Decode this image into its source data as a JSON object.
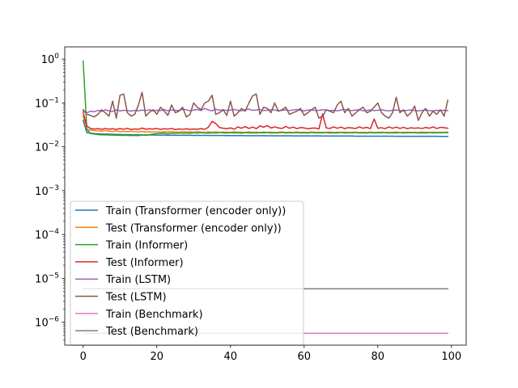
{
  "chart_data": {
    "type": "line",
    "title": "",
    "xlabel": "",
    "ylabel": "",
    "x_scale": "linear",
    "y_scale": "log",
    "xlim": [
      -5,
      104
    ],
    "ylim": [
      3e-07,
      1.9
    ],
    "grid": false,
    "legend_position": "lower-left",
    "x_ticks": [
      0,
      20,
      40,
      60,
      80,
      100
    ],
    "x_tick_labels": [
      "0",
      "20",
      "40",
      "60",
      "80",
      "100"
    ],
    "y_ticks": [
      1e-06,
      1e-05,
      0.0001,
      0.001,
      0.01,
      0.1,
      1
    ],
    "y_tick_mantissa": [
      "10",
      "10",
      "10",
      "10",
      "10",
      "10",
      "10"
    ],
    "y_tick_exponents": [
      "−6",
      "−5",
      "−4",
      "−3",
      "−2",
      "−1",
      "0"
    ],
    "x": [
      0,
      1,
      2,
      3,
      4,
      5,
      6,
      7,
      8,
      9,
      10,
      11,
      12,
      13,
      14,
      15,
      16,
      17,
      18,
      19,
      20,
      21,
      22,
      23,
      24,
      25,
      26,
      27,
      28,
      29,
      30,
      31,
      32,
      33,
      34,
      35,
      36,
      37,
      38,
      39,
      40,
      41,
      42,
      43,
      44,
      45,
      46,
      47,
      48,
      49,
      50,
      51,
      52,
      53,
      54,
      55,
      56,
      57,
      58,
      59,
      60,
      61,
      62,
      63,
      64,
      65,
      66,
      67,
      68,
      69,
      70,
      71,
      72,
      73,
      74,
      75,
      76,
      77,
      78,
      79,
      80,
      81,
      82,
      83,
      84,
      85,
      86,
      87,
      88,
      89,
      90,
      91,
      92,
      93,
      94,
      95,
      96,
      97,
      98,
      99
    ],
    "series": [
      {
        "name": "Train (Transformer (encoder only))",
        "color": "#1f77b4",
        "values": [
          0.04,
          0.021,
          0.0205,
          0.02,
          0.0198,
          0.0196,
          0.0195,
          0.0194,
          0.0193,
          0.0192,
          0.0191,
          0.019,
          0.0189,
          0.0189,
          0.0188,
          0.0188,
          0.0187,
          0.0187,
          0.0186,
          0.0186,
          0.0185,
          0.0185,
          0.0185,
          0.0184,
          0.0184,
          0.0184,
          0.0183,
          0.0183,
          0.0183,
          0.0183,
          0.0182,
          0.0182,
          0.0182,
          0.0182,
          0.0181,
          0.0181,
          0.0181,
          0.0181,
          0.0181,
          0.018,
          0.018,
          0.018,
          0.018,
          0.018,
          0.0179,
          0.0179,
          0.0179,
          0.0179,
          0.0179,
          0.0179,
          0.0178,
          0.0178,
          0.0178,
          0.0178,
          0.0178,
          0.0178,
          0.0178,
          0.0177,
          0.0177,
          0.0177,
          0.0177,
          0.0177,
          0.0177,
          0.0177,
          0.0177,
          0.0176,
          0.0176,
          0.0176,
          0.0176,
          0.0176,
          0.0176,
          0.0176,
          0.0176,
          0.0176,
          0.0175,
          0.0175,
          0.0175,
          0.0175,
          0.0175,
          0.0175,
          0.0175,
          0.0175,
          0.0175,
          0.0175,
          0.0175,
          0.0174,
          0.0174,
          0.0174,
          0.0174,
          0.0174,
          0.0174,
          0.0174,
          0.0174,
          0.0174,
          0.0174,
          0.0174,
          0.0174,
          0.0173,
          0.0173,
          0.0173
        ]
      },
      {
        "name": "Test (Transformer (encoder only))",
        "color": "#ff7f0e",
        "values": [
          0.05,
          0.025,
          0.024,
          0.0235,
          0.0232,
          0.0228,
          0.0235,
          0.0226,
          0.0224,
          0.023,
          0.0222,
          0.0225,
          0.022,
          0.0226,
          0.0221,
          0.0219,
          0.0224,
          0.0218,
          0.0222,
          0.0217,
          0.0221,
          0.0216,
          0.022,
          0.0218,
          0.0223,
          0.0217,
          0.0215,
          0.0221,
          0.0216,
          0.0219,
          0.0215,
          0.0222,
          0.0216,
          0.0214,
          0.0219,
          0.0215,
          0.0221,
          0.0214,
          0.0218,
          0.0216,
          0.0213,
          0.022,
          0.0215,
          0.0217,
          0.0213,
          0.0219,
          0.0214,
          0.0216,
          0.0212,
          0.0218,
          0.0214,
          0.0217,
          0.0213,
          0.0215,
          0.0219,
          0.0213,
          0.0216,
          0.0212,
          0.0218,
          0.0214,
          0.0215,
          0.0213,
          0.0219,
          0.0212,
          0.0216,
          0.0214,
          0.0213,
          0.0218,
          0.0212,
          0.0215,
          0.0213,
          0.0217,
          0.0212,
          0.0214,
          0.0216,
          0.0212,
          0.0215,
          0.0213,
          0.0217,
          0.0212,
          0.0214,
          0.0216,
          0.0212,
          0.0215,
          0.0213,
          0.0218,
          0.0212,
          0.0214,
          0.0216,
          0.0213,
          0.0215,
          0.0212,
          0.0217,
          0.0214,
          0.0213,
          0.0216,
          0.0212,
          0.0215,
          0.0213,
          0.0216
        ]
      },
      {
        "name": "Train (Informer)",
        "color": "#2ca02c",
        "values": [
          0.9,
          0.025,
          0.02,
          0.0195,
          0.019,
          0.0188,
          0.0187,
          0.0186,
          0.0185,
          0.0184,
          0.0183,
          0.0182,
          0.0182,
          0.0181,
          0.0181,
          0.018,
          0.0186,
          0.0182,
          0.019,
          0.0195,
          0.02,
          0.0202,
          0.0205,
          0.0198,
          0.0206,
          0.0203,
          0.0208,
          0.0205,
          0.0207,
          0.0204,
          0.0209,
          0.0206,
          0.021,
          0.0207,
          0.0205,
          0.0209,
          0.0206,
          0.0211,
          0.0208,
          0.0206,
          0.021,
          0.0207,
          0.0209,
          0.0205,
          0.0211,
          0.0207,
          0.0209,
          0.0206,
          0.021,
          0.0208,
          0.0211,
          0.0206,
          0.0209,
          0.0207,
          0.0212,
          0.0206,
          0.021,
          0.0208,
          0.0211,
          0.0207,
          0.0209,
          0.0206,
          0.0212,
          0.0207,
          0.021,
          0.0208,
          0.0211,
          0.0206,
          0.0209,
          0.0207,
          0.0212,
          0.0206,
          0.021,
          0.0208,
          0.0211,
          0.0207,
          0.0209,
          0.0206,
          0.0212,
          0.0207,
          0.021,
          0.0208,
          0.0211,
          0.0206,
          0.0209,
          0.0207,
          0.0212,
          0.0206,
          0.021,
          0.0208,
          0.0211,
          0.0207,
          0.0209,
          0.0206,
          0.0212,
          0.0207,
          0.021,
          0.0208,
          0.0211,
          0.0209
        ]
      },
      {
        "name": "Test (Informer)",
        "color": "#d62728",
        "values": [
          0.06,
          0.03,
          0.026,
          0.0255,
          0.026,
          0.025,
          0.0262,
          0.0252,
          0.0258,
          0.0249,
          0.026,
          0.0251,
          0.0265,
          0.0248,
          0.0256,
          0.025,
          0.0268,
          0.0252,
          0.0259,
          0.0255,
          0.0262,
          0.0249,
          0.0258,
          0.0253,
          0.0262,
          0.0248,
          0.0256,
          0.0251,
          0.0259,
          0.025,
          0.0255,
          0.0252,
          0.026,
          0.025,
          0.028,
          0.038,
          0.034,
          0.0275,
          0.0265,
          0.026,
          0.027,
          0.0252,
          0.0285,
          0.0265,
          0.029,
          0.0262,
          0.0282,
          0.026,
          0.03,
          0.028,
          0.0305,
          0.0268,
          0.0285,
          0.027,
          0.0262,
          0.0292,
          0.0265,
          0.0282,
          0.026,
          0.0275,
          0.027,
          0.0258,
          0.0265,
          0.0268,
          0.0255,
          0.056,
          0.027,
          0.0262,
          0.0285,
          0.0265,
          0.0282,
          0.026,
          0.0275,
          0.0268,
          0.0262,
          0.0285,
          0.0265,
          0.0278,
          0.026,
          0.043,
          0.0265,
          0.0272,
          0.026,
          0.0285,
          0.0265,
          0.0282,
          0.0262,
          0.0278,
          0.026,
          0.0272,
          0.0265,
          0.027,
          0.0262,
          0.0275,
          0.0265,
          0.0285,
          0.0262,
          0.0278,
          0.0272,
          0.0265
        ]
      },
      {
        "name": "Train (LSTM)",
        "color": "#9467bd",
        "values": [
          0.065,
          0.06,
          0.065,
          0.063,
          0.068,
          0.064,
          0.07,
          0.066,
          0.064,
          0.07,
          0.066,
          0.068,
          0.067,
          0.065,
          0.068,
          0.066,
          0.069,
          0.067,
          0.07,
          0.066,
          0.068,
          0.067,
          0.071,
          0.066,
          0.069,
          0.068,
          0.067,
          0.072,
          0.07,
          0.066,
          0.069,
          0.071,
          0.067,
          0.075,
          0.069,
          0.066,
          0.072,
          0.068,
          0.07,
          0.067,
          0.069,
          0.071,
          0.068,
          0.066,
          0.07,
          0.072,
          0.068,
          0.069,
          0.071,
          0.067,
          0.068,
          0.07,
          0.069,
          0.066,
          0.068,
          0.07,
          0.067,
          0.069,
          0.071,
          0.068,
          0.066,
          0.069,
          0.07,
          0.067,
          0.068,
          0.07,
          0.069,
          0.067,
          0.068,
          0.066,
          0.069,
          0.071,
          0.068,
          0.067,
          0.069,
          0.07,
          0.066,
          0.068,
          0.069,
          0.067,
          0.068,
          0.07,
          0.067,
          0.066,
          0.068,
          0.069,
          0.067,
          0.066,
          0.068,
          0.069,
          0.067,
          0.066,
          0.068,
          0.069,
          0.067,
          0.066,
          0.068,
          0.067,
          0.068,
          0.067
        ]
      },
      {
        "name": "Test (LSTM)",
        "color": "#8c564b",
        "values": [
          0.07,
          0.055,
          0.052,
          0.048,
          0.055,
          0.07,
          0.06,
          0.05,
          0.11,
          0.045,
          0.15,
          0.16,
          0.06,
          0.05,
          0.055,
          0.09,
          0.175,
          0.05,
          0.062,
          0.07,
          0.055,
          0.08,
          0.065,
          0.052,
          0.09,
          0.06,
          0.065,
          0.08,
          0.048,
          0.055,
          0.1,
          0.08,
          0.07,
          0.1,
          0.11,
          0.15,
          0.055,
          0.06,
          0.07,
          0.052,
          0.11,
          0.05,
          0.06,
          0.075,
          0.065,
          0.1,
          0.145,
          0.16,
          0.055,
          0.08,
          0.075,
          0.06,
          0.1,
          0.065,
          0.07,
          0.08,
          0.055,
          0.06,
          0.065,
          0.075,
          0.052,
          0.06,
          0.07,
          0.08,
          0.045,
          0.05,
          0.07,
          0.065,
          0.06,
          0.09,
          0.11,
          0.06,
          0.075,
          0.05,
          0.06,
          0.07,
          0.08,
          0.06,
          0.065,
          0.08,
          0.1,
          0.06,
          0.05,
          0.045,
          0.06,
          0.135,
          0.06,
          0.07,
          0.05,
          0.06,
          0.085,
          0.04,
          0.06,
          0.075,
          0.05,
          0.065,
          0.055,
          0.07,
          0.05,
          0.115
        ]
      },
      {
        "name": "Train (Benchmark)",
        "color": "#e377c2",
        "values": [
          5.6e-07,
          5.6e-07,
          5.6e-07,
          5.6e-07,
          5.6e-07,
          5.6e-07,
          5.6e-07,
          5.6e-07,
          5.6e-07,
          5.6e-07,
          5.6e-07,
          5.6e-07,
          5.6e-07,
          5.6e-07,
          5.6e-07,
          5.6e-07,
          5.6e-07,
          5.6e-07,
          5.6e-07,
          5.6e-07,
          5.6e-07,
          5.6e-07,
          5.6e-07,
          5.6e-07,
          5.6e-07,
          5.6e-07,
          5.6e-07,
          5.6e-07,
          5.6e-07,
          5.6e-07,
          5.6e-07,
          5.6e-07,
          5.6e-07,
          5.6e-07,
          5.6e-07,
          5.6e-07,
          5.6e-07,
          5.6e-07,
          5.6e-07,
          5.6e-07,
          5.6e-07,
          5.6e-07,
          5.6e-07,
          5.6e-07,
          5.6e-07,
          5.6e-07,
          5.6e-07,
          5.6e-07,
          5.6e-07,
          5.6e-07,
          5.6e-07,
          5.6e-07,
          5.6e-07,
          5.6e-07,
          5.6e-07,
          5.6e-07,
          5.6e-07,
          5.6e-07,
          5.6e-07,
          5.6e-07,
          5.6e-07,
          5.6e-07,
          5.6e-07,
          5.6e-07,
          5.6e-07,
          5.6e-07,
          5.6e-07,
          5.6e-07,
          5.6e-07,
          5.6e-07,
          5.6e-07,
          5.6e-07,
          5.6e-07,
          5.6e-07,
          5.6e-07,
          5.6e-07,
          5.6e-07,
          5.6e-07,
          5.6e-07,
          5.6e-07,
          5.6e-07,
          5.6e-07,
          5.6e-07,
          5.6e-07,
          5.6e-07,
          5.6e-07,
          5.6e-07,
          5.6e-07,
          5.6e-07,
          5.6e-07,
          5.6e-07,
          5.6e-07,
          5.6e-07,
          5.6e-07,
          5.6e-07,
          5.6e-07,
          5.6e-07,
          5.6e-07,
          5.6e-07,
          5.6e-07
        ]
      },
      {
        "name": "Test (Benchmark)",
        "color": "#7f7f7f",
        "values": [
          5.8e-06,
          5.8e-06,
          5.8e-06,
          5.8e-06,
          5.8e-06,
          5.8e-06,
          5.8e-06,
          5.8e-06,
          5.8e-06,
          5.8e-06,
          5.8e-06,
          5.8e-06,
          5.8e-06,
          5.8e-06,
          5.8e-06,
          5.8e-06,
          5.8e-06,
          5.8e-06,
          5.8e-06,
          5.8e-06,
          5.8e-06,
          5.8e-06,
          5.8e-06,
          5.8e-06,
          5.8e-06,
          5.8e-06,
          5.8e-06,
          5.8e-06,
          5.8e-06,
          5.8e-06,
          5.8e-06,
          5.8e-06,
          5.8e-06,
          5.8e-06,
          5.8e-06,
          5.8e-06,
          5.8e-06,
          5.8e-06,
          5.8e-06,
          5.8e-06,
          5.8e-06,
          5.8e-06,
          5.8e-06,
          5.8e-06,
          5.8e-06,
          5.8e-06,
          5.8e-06,
          5.8e-06,
          5.8e-06,
          5.8e-06,
          5.8e-06,
          5.8e-06,
          5.8e-06,
          5.8e-06,
          5.8e-06,
          5.8e-06,
          5.8e-06,
          5.8e-06,
          5.8e-06,
          5.8e-06,
          5.8e-06,
          5.8e-06,
          5.8e-06,
          5.8e-06,
          5.8e-06,
          5.8e-06,
          5.8e-06,
          5.8e-06,
          5.8e-06,
          5.8e-06,
          5.8e-06,
          5.8e-06,
          5.8e-06,
          5.8e-06,
          5.8e-06,
          5.8e-06,
          5.8e-06,
          5.8e-06,
          5.8e-06,
          5.8e-06,
          5.8e-06,
          5.8e-06,
          5.8e-06,
          5.8e-06,
          5.8e-06,
          5.8e-06,
          5.8e-06,
          5.8e-06,
          5.8e-06,
          5.8e-06,
          5.8e-06,
          5.8e-06,
          5.8e-06,
          5.8e-06,
          5.8e-06,
          5.8e-06,
          5.8e-06,
          5.8e-06,
          5.8e-06,
          5.8e-06
        ]
      }
    ]
  }
}
